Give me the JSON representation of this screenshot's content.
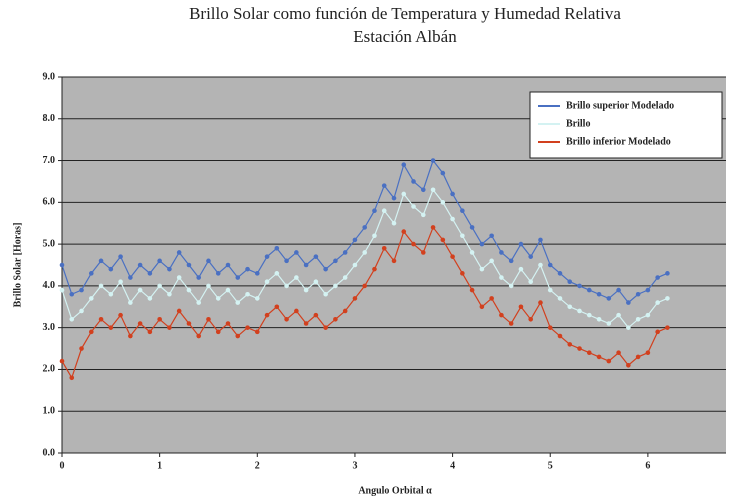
{
  "chart_data": {
    "type": "line",
    "title": "Brillo Solar como función de Temperatura y Humedad Relativa",
    "subtitle": "Estación Albán",
    "x_label": "Angulo Orbital α",
    "y_label": "Brillo Solar [Horas]",
    "x": [
      0,
      0.1,
      0.2,
      0.3,
      0.4,
      0.5,
      0.6,
      0.7,
      0.8,
      0.9,
      1.0,
      1.1,
      1.2,
      1.3,
      1.4,
      1.5,
      1.6,
      1.7,
      1.8,
      1.9,
      2.0,
      2.1,
      2.2,
      2.3,
      2.4,
      2.5,
      2.6,
      2.7,
      2.8,
      2.9,
      3.0,
      3.1,
      3.2,
      3.3,
      3.4,
      3.5,
      3.6,
      3.7,
      3.8,
      3.9,
      4.0,
      4.1,
      4.2,
      4.3,
      4.4,
      4.5,
      4.6,
      4.7,
      4.8,
      4.9,
      5.0,
      5.1,
      5.2,
      5.3,
      5.4,
      5.5,
      5.6,
      5.7,
      5.8,
      5.9,
      6.0,
      6.1,
      6.2
    ],
    "series": [
      {
        "name": "Brillo superior Modelado",
        "color": "#4a70c2",
        "values": [
          4.5,
          3.8,
          3.9,
          4.3,
          4.6,
          4.4,
          4.7,
          4.2,
          4.5,
          4.3,
          4.6,
          4.4,
          4.8,
          4.5,
          4.2,
          4.6,
          4.3,
          4.5,
          4.2,
          4.4,
          4.3,
          4.7,
          4.9,
          4.6,
          4.8,
          4.5,
          4.7,
          4.4,
          4.6,
          4.8,
          5.1,
          5.4,
          5.8,
          6.4,
          6.1,
          6.9,
          6.5,
          6.3,
          7.0,
          6.7,
          6.2,
          5.8,
          5.4,
          5.0,
          5.2,
          4.8,
          4.6,
          5.0,
          4.7,
          5.1,
          4.5,
          4.3,
          4.1,
          4.0,
          3.9,
          3.8,
          3.7,
          3.9,
          3.6,
          3.8,
          3.9,
          4.2,
          4.3
        ]
      },
      {
        "name": "Brillo",
        "color": "#d4f2f2",
        "values": [
          3.9,
          3.2,
          3.4,
          3.7,
          4.0,
          3.8,
          4.1,
          3.6,
          3.9,
          3.7,
          4.0,
          3.8,
          4.2,
          3.9,
          3.6,
          4.0,
          3.7,
          3.9,
          3.6,
          3.8,
          3.7,
          4.1,
          4.3,
          4.0,
          4.2,
          3.9,
          4.1,
          3.8,
          4.0,
          4.2,
          4.5,
          4.8,
          5.2,
          5.8,
          5.5,
          6.2,
          5.9,
          5.7,
          6.3,
          6.0,
          5.6,
          5.2,
          4.8,
          4.4,
          4.6,
          4.2,
          4.0,
          4.4,
          4.1,
          4.5,
          3.9,
          3.7,
          3.5,
          3.4,
          3.3,
          3.2,
          3.1,
          3.3,
          3.0,
          3.2,
          3.3,
          3.6,
          3.7
        ]
      },
      {
        "name": "Brillo inferior Modelado",
        "color": "#d2401e",
        "values": [
          2.2,
          1.8,
          2.5,
          2.9,
          3.2,
          3.0,
          3.3,
          2.8,
          3.1,
          2.9,
          3.2,
          3.0,
          3.4,
          3.1,
          2.8,
          3.2,
          2.9,
          3.1,
          2.8,
          3.0,
          2.9,
          3.3,
          3.5,
          3.2,
          3.4,
          3.1,
          3.3,
          3.0,
          3.2,
          3.4,
          3.7,
          4.0,
          4.4,
          4.9,
          4.6,
          5.3,
          5.0,
          4.8,
          5.4,
          5.1,
          4.7,
          4.3,
          3.9,
          3.5,
          3.7,
          3.3,
          3.1,
          3.5,
          3.2,
          3.6,
          3.0,
          2.8,
          2.6,
          2.5,
          2.4,
          2.3,
          2.2,
          2.4,
          2.1,
          2.3,
          2.4,
          2.9,
          3.0
        ]
      }
    ],
    "xlim": [
      0,
      6.8
    ],
    "xticks": [
      0,
      1,
      2,
      3,
      4,
      5,
      6
    ],
    "ylim": [
      0,
      9
    ],
    "yticks": [
      {
        "value": 0,
        "label": "0.0"
      },
      {
        "value": 1,
        "label": "1.0"
      },
      {
        "value": 2,
        "label": "2.0"
      },
      {
        "value": 3,
        "label": "3.0"
      },
      {
        "value": 4,
        "label": "4.0"
      },
      {
        "value": 5,
        "label": "5.0"
      },
      {
        "value": 6,
        "label": "6.0"
      },
      {
        "value": 7,
        "label": "7.0"
      },
      {
        "value": 8,
        "label": "8.0"
      },
      {
        "value": 9,
        "label": "9.0"
      }
    ],
    "grid": true,
    "legend": "top-right"
  }
}
